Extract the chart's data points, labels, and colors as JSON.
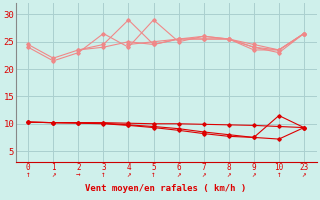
{
  "bg_color": "#cff0eb",
  "grid_color": "#aacfcf",
  "xlabel": "Vent moyen/en rafales ( km/h )",
  "ylim": [
    3,
    32
  ],
  "yticks": [
    5,
    10,
    15,
    20,
    25,
    30
  ],
  "line_color_light": "#f08888",
  "line_color_dark": "#dd0000",
  "series_upper": [
    {
      "x": [
        0,
        1,
        2,
        3,
        4,
        5,
        6,
        7,
        8,
        9,
        10,
        23
      ],
      "y": [
        24.0,
        21.5,
        23.0,
        26.5,
        24.0,
        29.0,
        25.0,
        26.0,
        25.5,
        24.0,
        23.0,
        26.5
      ]
    },
    {
      "x": [
        0,
        1,
        2,
        3,
        4,
        5,
        6,
        7,
        8,
        9,
        10,
        23
      ],
      "y": [
        24.5,
        22.0,
        23.5,
        24.5,
        29.0,
        24.5,
        25.5,
        26.0,
        25.5,
        24.5,
        23.5,
        26.5
      ]
    },
    {
      "x": [
        2,
        3,
        4,
        5,
        6,
        7,
        8,
        9,
        10,
        23
      ],
      "y": [
        23.5,
        24.0,
        25.0,
        24.5,
        25.5,
        25.5,
        25.5,
        23.5,
        23.5,
        26.5
      ]
    },
    {
      "x": [
        4,
        5,
        6,
        7,
        8,
        9,
        10,
        23
      ],
      "y": [
        24.5,
        25.0,
        25.5,
        25.5,
        25.5,
        24.0,
        23.5,
        26.5
      ]
    }
  ],
  "series_lower": [
    {
      "x": [
        0,
        1,
        2,
        3,
        4,
        5,
        6,
        7,
        8,
        9,
        10,
        23
      ],
      "y": [
        10.3,
        10.2,
        10.2,
        10.2,
        10.1,
        10.0,
        10.0,
        9.9,
        9.8,
        9.7,
        9.5,
        9.3
      ]
    },
    {
      "x": [
        0,
        1,
        2,
        3,
        4,
        5,
        6,
        7,
        8,
        9,
        10,
        23
      ],
      "y": [
        10.3,
        10.2,
        10.1,
        10.0,
        9.7,
        9.3,
        8.8,
        8.2,
        7.7,
        7.5,
        7.2,
        9.3
      ]
    },
    {
      "x": [
        0,
        1,
        2,
        3,
        4,
        5,
        6,
        7,
        8,
        9,
        10,
        23
      ],
      "y": [
        10.3,
        10.2,
        10.2,
        10.1,
        9.8,
        9.5,
        9.1,
        8.5,
        8.0,
        7.5,
        11.5,
        9.3
      ]
    }
  ],
  "xpositions": [
    0,
    1,
    2,
    3,
    4,
    5,
    6,
    7,
    8,
    9,
    10,
    23
  ],
  "xlabels": [
    "0",
    "1",
    "2",
    "3",
    "4",
    "5",
    "6",
    "7",
    "8",
    "9",
    "10",
    "23"
  ],
  "arrow_labels": [
    "↑",
    "↗",
    "→",
    "↑",
    "↗",
    "↑",
    "↗",
    "↗",
    "↗",
    "↗",
    "↑",
    "↗"
  ]
}
